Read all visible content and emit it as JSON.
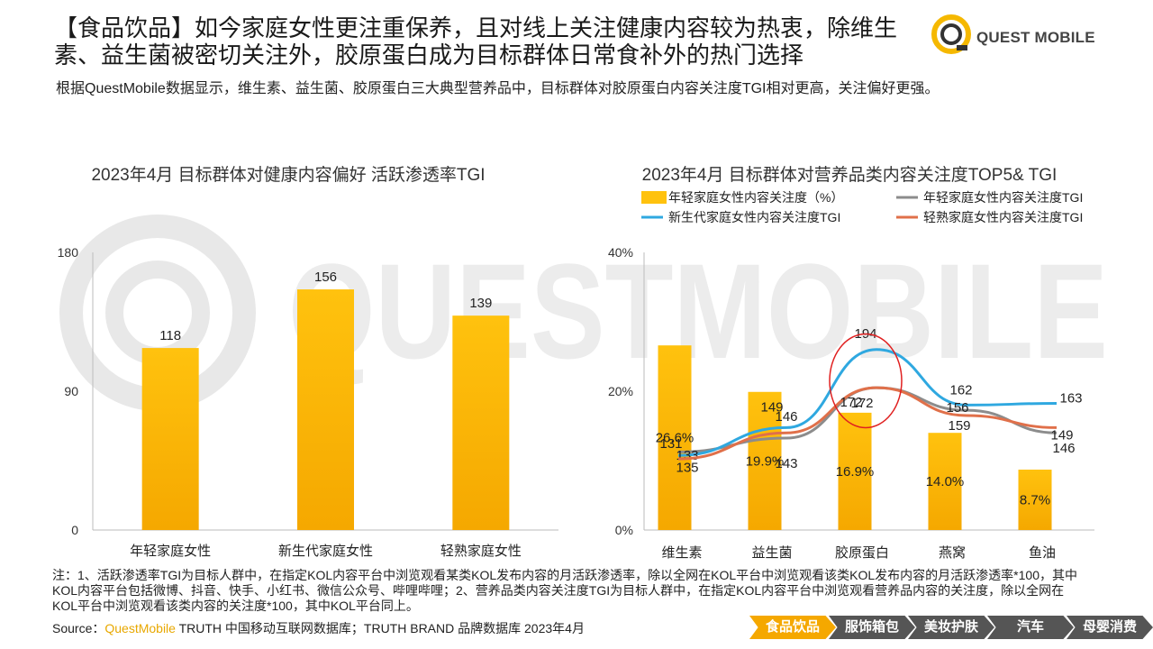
{
  "header": {
    "title": "【食品饮品】如今家庭女性更注重保养，且对线上关注健康内容较为热衷，除维生素、益生菌被密切关注外，胶原蛋白成为目标群体日常食补外的热门选择",
    "subtitle": "根据QuestMobile数据显示，维生素、益生菌、胶原蛋白三大典型营养品中，目标群体对胶原蛋白内容关注度TGI相对更高，关注偏好更强。",
    "logo_text": "QUEST MOBILE",
    "watermark_text": "QUESTMOBILE"
  },
  "colors": {
    "bar": "#FFC20E",
    "bar_dark": "#F5A800",
    "gray_line": "#8c8c8c",
    "blue_line": "#2FA8E0",
    "orange_line": "#E0704A",
    "highlight_circle": "#E02020",
    "nav_active": "#F5A800",
    "nav_inactive": "#555555"
  },
  "chart_data": [
    {
      "type": "bar",
      "title": "2023年4月 目标群体对健康内容偏好 活跃渗透率TGI",
      "categories": [
        "年轻家庭女性",
        "新生代家庭女性",
        "轻熟家庭女性"
      ],
      "values": [
        118,
        156,
        139
      ],
      "ylim": [
        0,
        180
      ],
      "yticks": [
        "0",
        "90",
        "180"
      ],
      "grid": false
    },
    {
      "type": "bar+line",
      "title": "2023年4月 目标群体对营养品类内容关注度TOP5& TGI",
      "categories": [
        "维生素",
        "益生菌",
        "胶原蛋白",
        "燕窝",
        "鱼油"
      ],
      "legend": [
        "年轻家庭女性内容关注度（%）",
        "年轻家庭女性内容关注度TGI",
        "新生代家庭女性内容关注度TGI",
        "轻熟家庭女性内容关注度TGI"
      ],
      "legend_position": "top",
      "bar_series": {
        "name": "年轻家庭女性内容关注度（%）",
        "values": [
          26.6,
          19.9,
          16.9,
          14.0,
          8.7
        ],
        "labels": [
          "26.6%",
          "19.9%",
          "16.9%",
          "14.0%",
          "8.7%"
        ]
      },
      "ylim": [
        0,
        40
      ],
      "yticks": [
        "0%",
        "20%",
        "40%"
      ],
      "line_series": [
        {
          "name": "年轻家庭女性内容关注度TGI",
          "values": [
            135,
            143,
            172,
            159,
            146
          ],
          "labels": [
            "135",
            "143",
            "172",
            "159",
            "146"
          ]
        },
        {
          "name": "新生代家庭女性内容关注度TGI",
          "values": [
            133,
            149,
            194,
            162,
            163
          ],
          "labels": [
            "133",
            "149",
            "194",
            "162",
            "163"
          ]
        },
        {
          "name": "轻熟家庭女性内容关注度TGI",
          "values": [
            131,
            146,
            172,
            156,
            149
          ],
          "labels": [
            "131",
            "146",
            "172",
            "156",
            "149"
          ]
        }
      ],
      "highlight": "胶原蛋白"
    }
  ],
  "footer": {
    "note": "注：1、活跃渗透率TGI为目标人群中，在指定KOL内容平台中浏览观看某类KOL发布内容的月活跃渗透率，除以全网在KOL平台中浏览观看该类KOL发布内容的月活跃渗透率*100，其中KOL内容平台包括微博、抖音、快手、小红书、微信公众号、哔哩哔哩；2、营养品类内容关注度TGI为目标人群中，在指定KOL内容平台中浏览观看营养品内容的关注度，除以全网在KOL平台中浏览观看该类内容的关注度*100，其中KOL平台同上。",
    "source_prefix": "Source：",
    "source_brand": "QuestMobile",
    "source_rest": " TRUTH 中国移动互联网数据库；TRUTH BRAND 品牌数据库 2023年4月"
  },
  "nav": [
    {
      "label": "食品饮品",
      "active": true
    },
    {
      "label": "服饰箱包",
      "active": false
    },
    {
      "label": "美妆护肤",
      "active": false
    },
    {
      "label": "汽车",
      "active": false
    },
    {
      "label": "母婴消费",
      "active": false
    }
  ]
}
